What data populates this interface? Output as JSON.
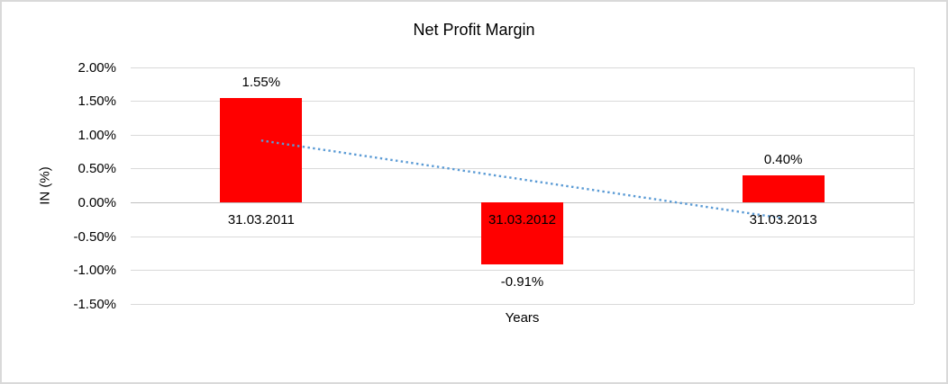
{
  "window": {
    "background": "#FFFFFF",
    "border_color": "#D9D9D9"
  },
  "chart_data": {
    "type": "bar",
    "title": "Net Profit Margin",
    "xlabel": "Years",
    "ylabel": "IN (%)",
    "categories": [
      "31.03.2011",
      "31.03.2012",
      "31.03.2013"
    ],
    "series": [
      {
        "name": "Net Profit Margin",
        "values": [
          1.55,
          -0.91,
          0.4
        ]
      }
    ],
    "data_labels": [
      "1.55%",
      "-0.91%",
      "0.40%"
    ],
    "y_ticks": [
      {
        "value": 2.0,
        "label": "2.00%"
      },
      {
        "value": 1.5,
        "label": "1.50%"
      },
      {
        "value": 1.0,
        "label": "1.00%"
      },
      {
        "value": 0.5,
        "label": "0.50%"
      },
      {
        "value": 0.0,
        "label": "0.00%"
      },
      {
        "value": -0.5,
        "label": "-0.50%"
      },
      {
        "value": -1.0,
        "label": "-1.00%"
      },
      {
        "value": -1.5,
        "label": "-1.50%"
      }
    ],
    "ylim": [
      -1.5,
      2.0
    ],
    "grid": true,
    "legend": "none",
    "bar_color": "#FF0000",
    "gridline_color": "#D9D9D9",
    "zero_axis_color": "#BFBFBF",
    "trendline": {
      "type": "linear",
      "style": "dotted",
      "color": "#5B9BD5",
      "start_value": 0.92,
      "end_value": -0.23
    }
  }
}
